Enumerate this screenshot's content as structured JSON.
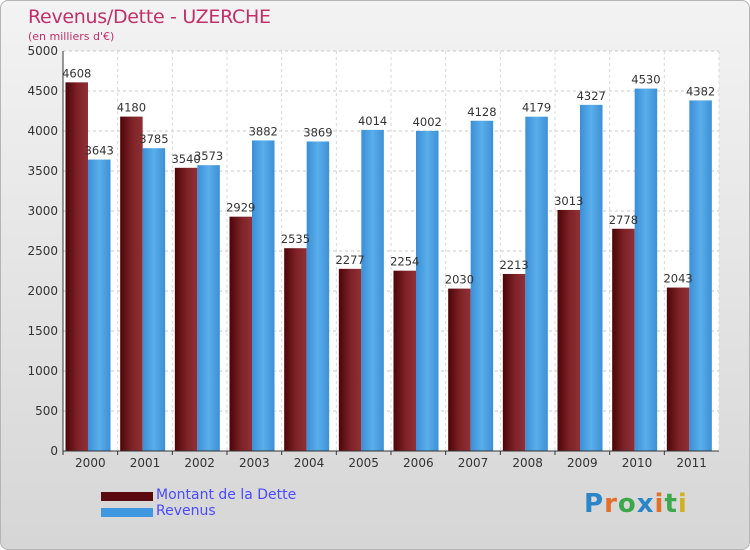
{
  "header": {
    "title": "Revenus/Dette - UZERCHE",
    "subtitle": "(en milliers d'€)"
  },
  "colors": {
    "dette": "#7a1f25",
    "revenus": "#4ea3e6",
    "title": "#c0306a",
    "legend_text": "#4a4aff"
  },
  "legend": {
    "items": [
      {
        "label": "Montant de la Dette",
        "color": "#5a0a0f"
      },
      {
        "label": "Revenus",
        "color": "#3f97e0"
      }
    ]
  },
  "logo": {
    "text": "Proxiti",
    "letters": [
      "P",
      "r",
      "o",
      "x",
      "i",
      "t",
      "i"
    ],
    "letter_colors": [
      "#2a86c8",
      "#e0702a",
      "#3ca84a",
      "#2a86c8",
      "#e0702a",
      "#3ca84a",
      "#d4b020"
    ]
  },
  "chart_data": {
    "type": "bar",
    "categories": [
      "2000",
      "2001",
      "2002",
      "2003",
      "2004",
      "2005",
      "2006",
      "2007",
      "2008",
      "2009",
      "2010",
      "2011"
    ],
    "series": [
      {
        "name": "Montant de la Dette",
        "values": [
          4608,
          4180,
          3540,
          2929,
          2535,
          2277,
          2254,
          2030,
          2213,
          3013,
          2778,
          2043
        ]
      },
      {
        "name": "Revenus",
        "values": [
          3643,
          3785,
          3573,
          3882,
          3869,
          4014,
          4002,
          4128,
          4179,
          4327,
          4530,
          4382
        ]
      }
    ],
    "ylim": [
      0,
      5000
    ],
    "yticks": [
      0,
      500,
      1000,
      1500,
      2000,
      2500,
      3000,
      3500,
      4000,
      4500,
      5000
    ],
    "grid": true
  }
}
